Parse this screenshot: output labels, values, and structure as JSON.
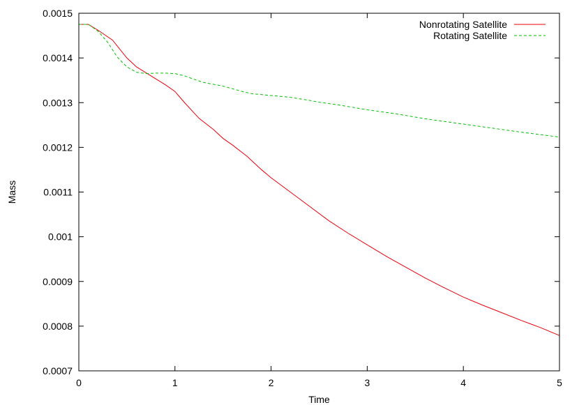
{
  "chart_data": {
    "type": "line",
    "title": "",
    "xlabel": "Time",
    "ylabel": "Mass",
    "xlim": [
      0,
      5
    ],
    "ylim": [
      0.0007,
      0.0015
    ],
    "x_ticks": [
      0,
      1,
      2,
      3,
      4,
      5
    ],
    "x_tick_labels": [
      "0",
      "1",
      "2",
      "3",
      "4",
      "5"
    ],
    "y_ticks": [
      0.0007,
      0.0008,
      0.0009,
      0.001,
      0.0011,
      0.0012,
      0.0013,
      0.0014,
      0.0015
    ],
    "y_tick_labels": [
      "0.0007",
      "0.0008",
      "0.0009",
      "0.001",
      "0.0011",
      "0.0012",
      "0.0013",
      "0.0014",
      "0.0015"
    ],
    "grid": false,
    "legend_position": "top-right",
    "series": [
      {
        "name": "Nonrotating Satellite",
        "color": "#e8000b",
        "style": "solid",
        "points": [
          [
            0,
            0.001475
          ],
          [
            0.1,
            0.001475
          ],
          [
            0.2,
            0.001462
          ],
          [
            0.35,
            0.00144
          ],
          [
            0.5,
            0.0014
          ],
          [
            0.6,
            0.00138
          ],
          [
            0.75,
            0.00136
          ],
          [
            0.9,
            0.00134
          ],
          [
            1.0,
            0.001325
          ],
          [
            1.1,
            0.0013
          ],
          [
            1.25,
            0.001265
          ],
          [
            1.4,
            0.00124
          ],
          [
            1.5,
            0.00122
          ],
          [
            1.6,
            0.001205
          ],
          [
            1.75,
            0.00118
          ],
          [
            1.9,
            0.00115
          ],
          [
            2.0,
            0.001132
          ],
          [
            2.2,
            0.0011
          ],
          [
            2.4,
            0.001068
          ],
          [
            2.6,
            0.001036
          ],
          [
            2.8,
            0.001008
          ],
          [
            3.0,
            0.000982
          ],
          [
            3.2,
            0.000956
          ],
          [
            3.4,
            0.000932
          ],
          [
            3.6,
            0.000908
          ],
          [
            3.8,
            0.000886
          ],
          [
            4.0,
            0.000865
          ],
          [
            4.2,
            0.000847
          ],
          [
            4.4,
            0.00083
          ],
          [
            4.6,
            0.000813
          ],
          [
            4.8,
            0.000797
          ],
          [
            5.0,
            0.000779
          ]
        ]
      },
      {
        "name": "Rotating Satellite",
        "color": "#00c000",
        "style": "dashed",
        "points": [
          [
            0,
            0.001475
          ],
          [
            0.1,
            0.001475
          ],
          [
            0.2,
            0.00146
          ],
          [
            0.3,
            0.001435
          ],
          [
            0.4,
            0.001402
          ],
          [
            0.5,
            0.00138
          ],
          [
            0.6,
            0.001368
          ],
          [
            0.7,
            0.001365
          ],
          [
            0.8,
            0.001366
          ],
          [
            0.9,
            0.001366
          ],
          [
            1.0,
            0.001365
          ],
          [
            1.1,
            0.00136
          ],
          [
            1.2,
            0.001352
          ],
          [
            1.3,
            0.001345
          ],
          [
            1.5,
            0.001337
          ],
          [
            1.7,
            0.001325
          ],
          [
            1.8,
            0.00132
          ],
          [
            2.0,
            0.001316
          ],
          [
            2.2,
            0.001312
          ],
          [
            2.4,
            0.001305
          ],
          [
            2.5,
            0.001301
          ],
          [
            2.7,
            0.001295
          ],
          [
            3.0,
            0.001284
          ],
          [
            3.3,
            0.001275
          ],
          [
            3.6,
            0.001264
          ],
          [
            4.0,
            0.001252
          ],
          [
            4.3,
            0.001243
          ],
          [
            4.6,
            0.001234
          ],
          [
            5.0,
            0.001223
          ]
        ]
      }
    ]
  }
}
